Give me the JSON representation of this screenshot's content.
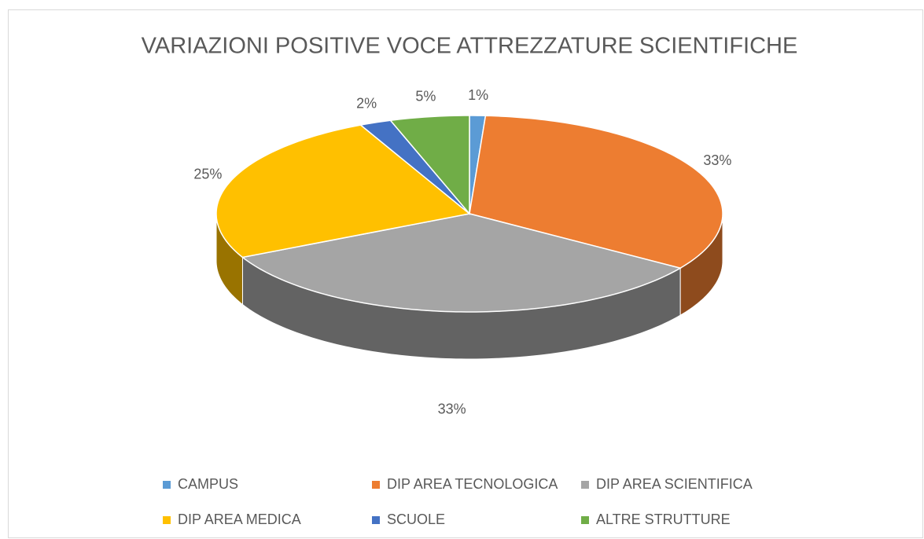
{
  "chart_data": {
    "type": "pie3d",
    "title": "VARIAZIONI POSITIVE VOCE ATTREZZATURE SCIENTIFICHE",
    "categories": [
      "CAMPUS",
      "DIP AREA TECNOLOGICA",
      "DIP AREA SCIENTIFICA",
      "DIP AREA MEDICA",
      "SCUOLE",
      "ALTRE STRUTTURE"
    ],
    "values": [
      1,
      33,
      33,
      25,
      2,
      5
    ],
    "value_labels": [
      "1%",
      "33%",
      "33%",
      "25%",
      "2%",
      "5%"
    ],
    "colors": [
      "#5b9bd5",
      "#ed7d31",
      "#a5a5a5",
      "#ffc000",
      "#4472c4",
      "#70ad47"
    ],
    "legend": "bottom"
  }
}
